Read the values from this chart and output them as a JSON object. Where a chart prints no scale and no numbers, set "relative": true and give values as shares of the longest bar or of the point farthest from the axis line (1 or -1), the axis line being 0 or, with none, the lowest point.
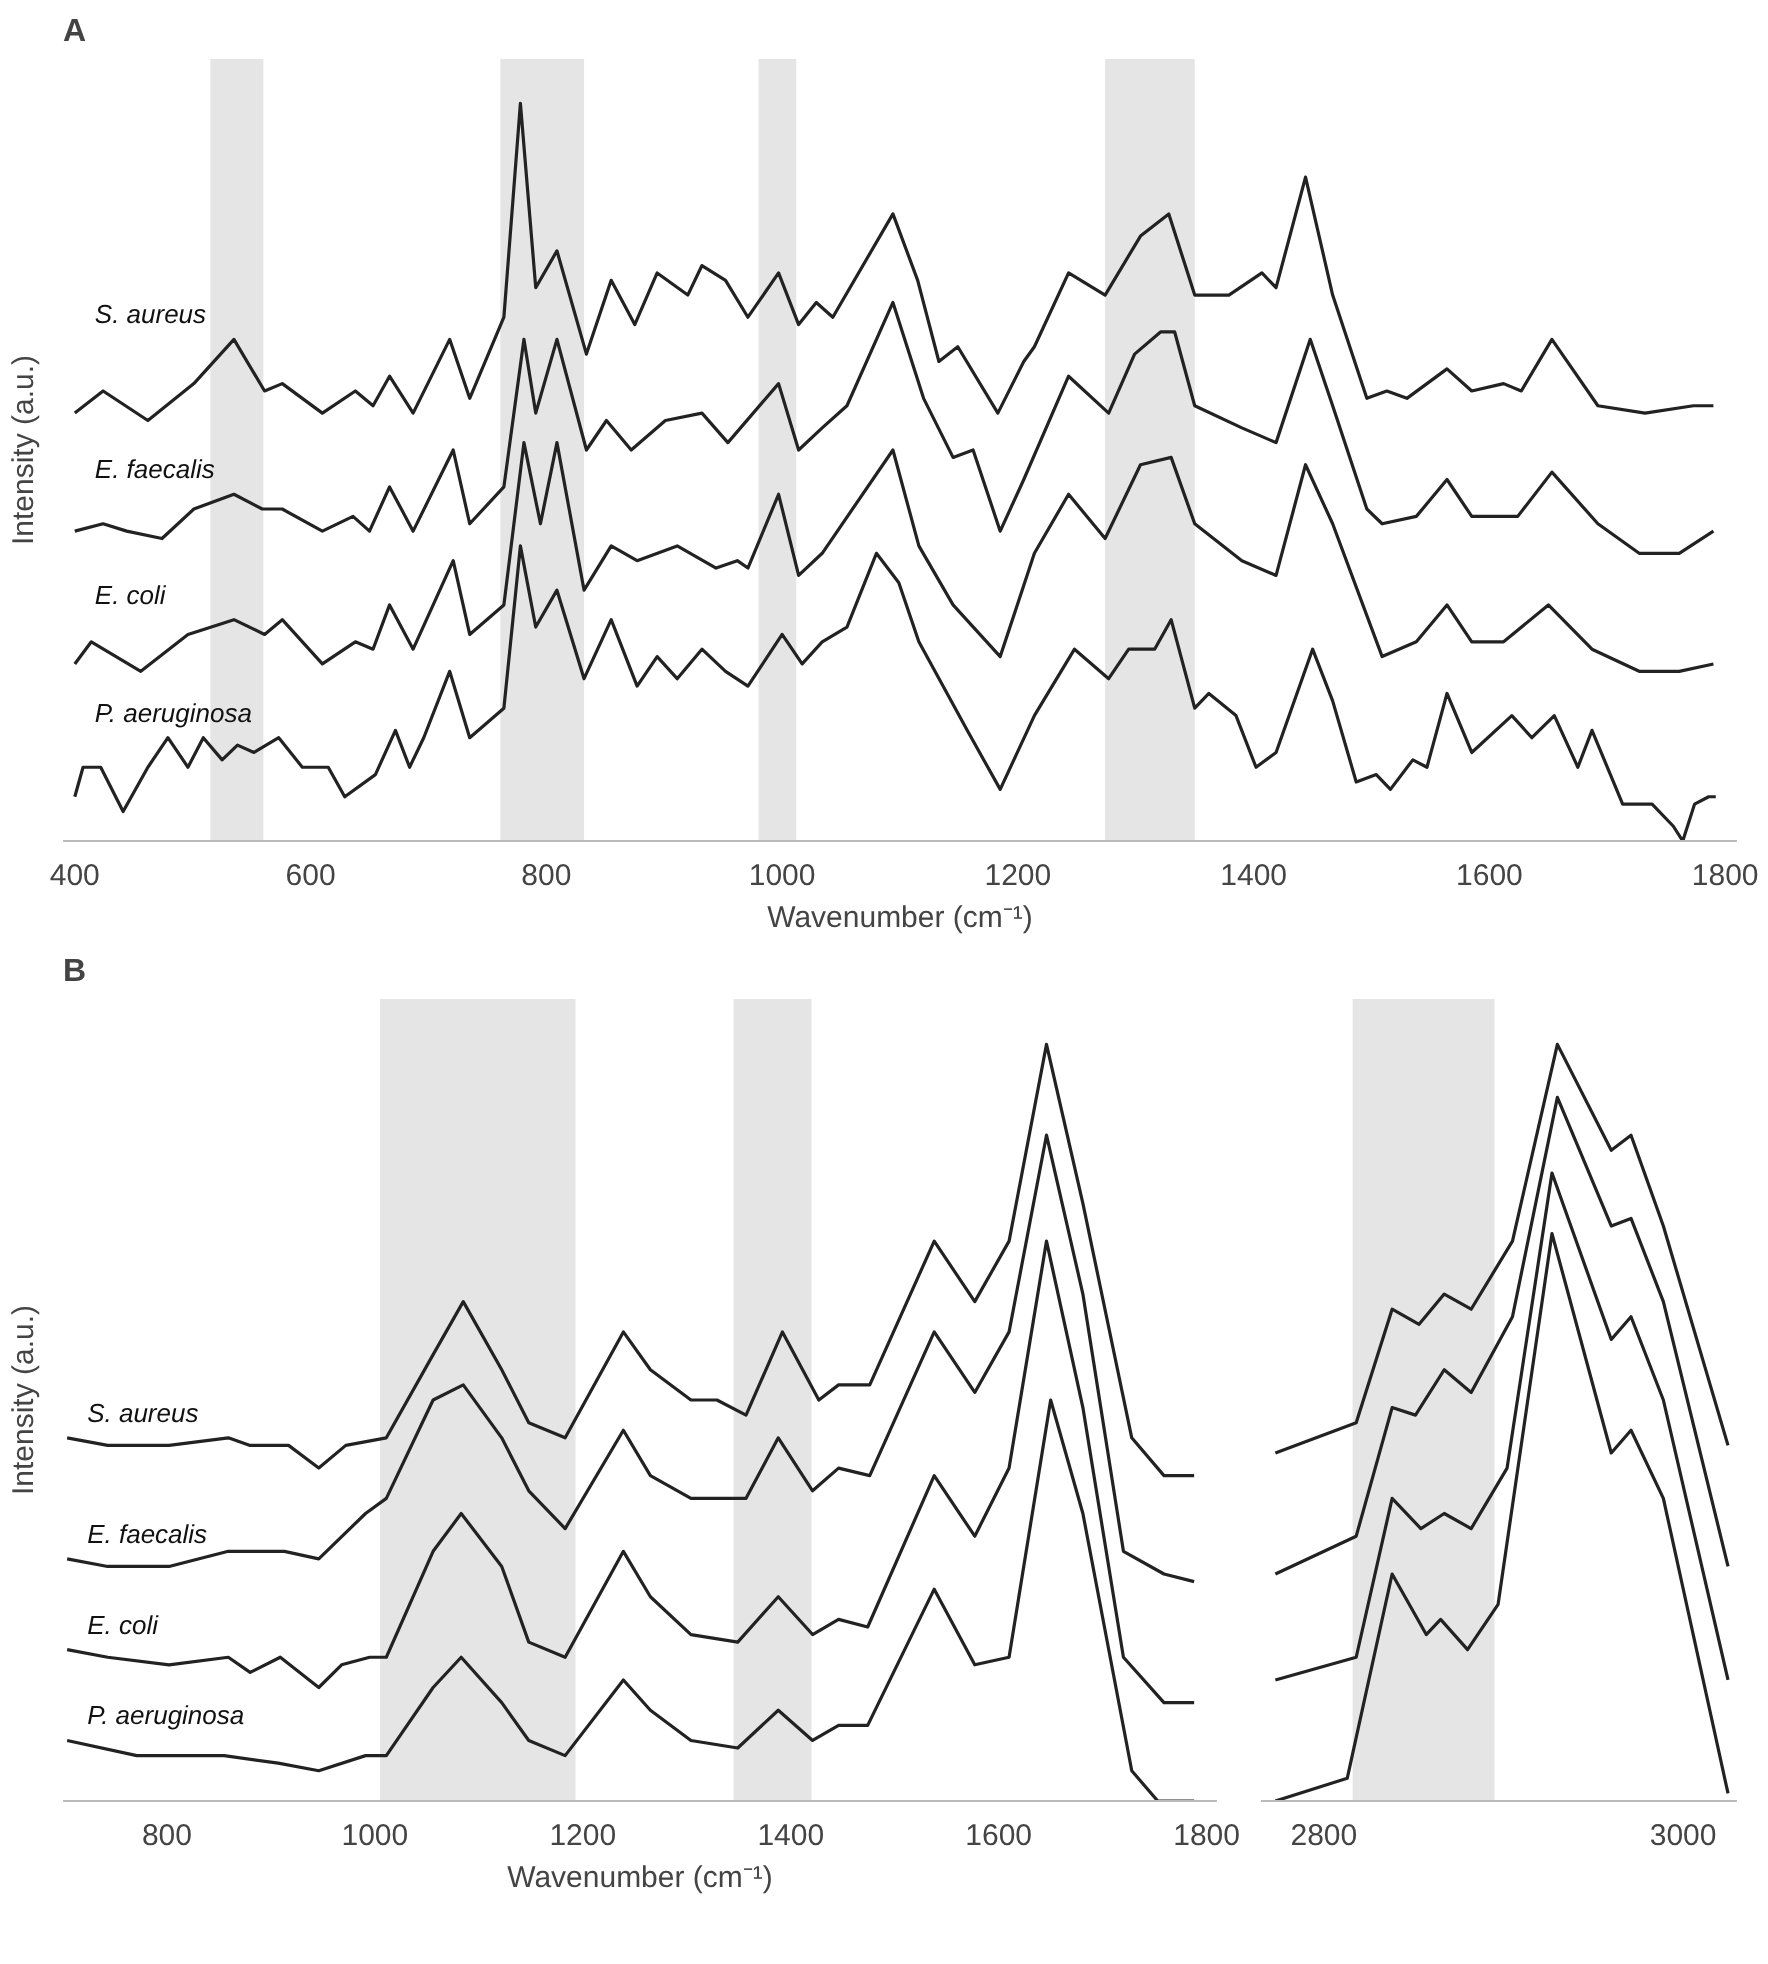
{
  "chart_data": [
    {
      "type": "line",
      "relative": true,
      "annotations": [
        "A"
      ],
      "xlabel": "Wavenumber (cm⁻¹)",
      "ylabel": "Intensity (a.u.)",
      "xlim": [
        390,
        1810
      ],
      "xticks": [
        400,
        600,
        800,
        1000,
        1200,
        1400,
        1600,
        1800
      ],
      "tick_labels": "x",
      "bands": [
        {
          "axis": "x",
          "from": 515,
          "to": 560,
          "color": "#d4d4d4"
        },
        {
          "axis": "x",
          "from": 761,
          "to": 832,
          "color": "#d4d4d4"
        },
        {
          "axis": "x",
          "from": 980,
          "to": 1012,
          "color": "#d4d4d4"
        },
        {
          "axis": "x",
          "from": 1274,
          "to": 1350,
          "color": "#d4d4d4"
        }
      ],
      "series": [
        {
          "name": "S. aureus",
          "color": "#222222",
          "x": [
            400,
            424,
            462,
            501,
            535,
            561,
            576,
            610,
            638,
            653,
            667,
            687,
            718,
            735,
            764,
            778,
            791,
            809,
            834,
            855,
            875,
            894,
            920,
            932,
            952,
            971,
            997,
            1014,
            1029,
            1043,
            1094,
            1115,
            1133,
            1149,
            1183,
            1205,
            1214,
            1243,
            1274,
            1304,
            1328,
            1350,
            1379,
            1407,
            1419,
            1444,
            1467,
            1496,
            1513,
            1530,
            1564,
            1585,
            1612,
            1627,
            1653,
            1692,
            1732,
            1773,
            1790
          ],
          "values": [
            0.58,
            0.61,
            0.57,
            0.62,
            0.68,
            0.61,
            0.62,
            0.58,
            0.61,
            0.59,
            0.63,
            0.58,
            0.68,
            0.6,
            0.71,
            1.0,
            0.75,
            0.8,
            0.66,
            0.76,
            0.7,
            0.77,
            0.74,
            0.78,
            0.76,
            0.71,
            0.77,
            0.7,
            0.73,
            0.71,
            0.85,
            0.76,
            0.65,
            0.67,
            0.58,
            0.65,
            0.67,
            0.77,
            0.74,
            0.82,
            0.85,
            0.74,
            0.74,
            0.77,
            0.75,
            0.9,
            0.74,
            0.6,
            0.61,
            0.6,
            0.64,
            0.61,
            0.62,
            0.61,
            0.68,
            0.59,
            0.58,
            0.59,
            0.59
          ]
        },
        {
          "name": "E. faecalis",
          "color": "#222222",
          "x": [
            400,
            424,
            444,
            474,
            501,
            535,
            559,
            576,
            610,
            636,
            650,
            667,
            687,
            721,
            735,
            764,
            781,
            791,
            809,
            834,
            851,
            872,
            901,
            932,
            954,
            997,
            1014,
            1034,
            1055,
            1094,
            1120,
            1145,
            1162,
            1185,
            1205,
            1243,
            1277,
            1299,
            1321,
            1333,
            1350,
            1390,
            1419,
            1448,
            1467,
            1496,
            1509,
            1538,
            1564,
            1585,
            1624,
            1653,
            1692,
            1727,
            1761,
            1790
          ],
          "values": [
            0.42,
            0.43,
            0.42,
            0.41,
            0.45,
            0.47,
            0.45,
            0.45,
            0.42,
            0.44,
            0.42,
            0.48,
            0.42,
            0.53,
            0.43,
            0.48,
            0.68,
            0.58,
            0.68,
            0.53,
            0.57,
            0.53,
            0.57,
            0.58,
            0.54,
            0.62,
            0.53,
            0.56,
            0.59,
            0.73,
            0.6,
            0.52,
            0.53,
            0.42,
            0.49,
            0.63,
            0.58,
            0.66,
            0.69,
            0.69,
            0.59,
            0.56,
            0.54,
            0.68,
            0.59,
            0.45,
            0.43,
            0.44,
            0.49,
            0.44,
            0.44,
            0.5,
            0.43,
            0.39,
            0.39,
            0.42
          ]
        },
        {
          "name": "E. coli",
          "color": "#222222",
          "x": [
            400,
            414,
            456,
            496,
            535,
            561,
            576,
            610,
            638,
            653,
            667,
            687,
            721,
            735,
            764,
            781,
            795,
            809,
            832,
            855,
            877,
            911,
            944,
            962,
            971,
            997,
            1014,
            1034,
            1094,
            1116,
            1145,
            1185,
            1214,
            1243,
            1274,
            1304,
            1330,
            1350,
            1390,
            1419,
            1444,
            1467,
            1509,
            1538,
            1564,
            1585,
            1612,
            1650,
            1687,
            1727,
            1761,
            1790
          ],
          "values": [
            0.24,
            0.27,
            0.23,
            0.28,
            0.3,
            0.28,
            0.3,
            0.24,
            0.27,
            0.26,
            0.32,
            0.26,
            0.38,
            0.28,
            0.32,
            0.54,
            0.43,
            0.54,
            0.34,
            0.4,
            0.38,
            0.4,
            0.37,
            0.38,
            0.37,
            0.47,
            0.36,
            0.39,
            0.53,
            0.4,
            0.32,
            0.25,
            0.39,
            0.47,
            0.41,
            0.51,
            0.52,
            0.43,
            0.38,
            0.36,
            0.51,
            0.43,
            0.25,
            0.27,
            0.32,
            0.27,
            0.27,
            0.32,
            0.26,
            0.23,
            0.23,
            0.24
          ]
        },
        {
          "name": "P. aeruginosa",
          "color": "#222222",
          "x": [
            400,
            407,
            422,
            441,
            462,
            479,
            496,
            509,
            525,
            538,
            552,
            573,
            593,
            615,
            629,
            655,
            672,
            684,
            696,
            718,
            735,
            764,
            778,
            791,
            809,
            832,
            855,
            877,
            894,
            911,
            932,
            952,
            971,
            1000,
            1017,
            1034,
            1055,
            1080,
            1099,
            1116,
            1157,
            1185,
            1214,
            1248,
            1277,
            1294,
            1316,
            1330,
            1350,
            1362,
            1385,
            1402,
            1419,
            1450,
            1467,
            1487,
            1504,
            1516,
            1535,
            1547,
            1564,
            1585,
            1619,
            1636,
            1655,
            1675,
            1687,
            1713,
            1738,
            1756,
            1764,
            1774,
            1786,
            1792
          ],
          "values": [
            0.06,
            0.1,
            0.1,
            0.04,
            0.1,
            0.14,
            0.1,
            0.14,
            0.11,
            0.13,
            0.12,
            0.14,
            0.1,
            0.1,
            0.06,
            0.09,
            0.15,
            0.1,
            0.14,
            0.23,
            0.14,
            0.18,
            0.4,
            0.29,
            0.34,
            0.22,
            0.3,
            0.21,
            0.25,
            0.22,
            0.26,
            0.23,
            0.21,
            0.28,
            0.24,
            0.27,
            0.29,
            0.39,
            0.35,
            0.27,
            0.15,
            0.07,
            0.17,
            0.26,
            0.22,
            0.26,
            0.26,
            0.3,
            0.18,
            0.2,
            0.17,
            0.1,
            0.12,
            0.26,
            0.19,
            0.08,
            0.09,
            0.07,
            0.11,
            0.1,
            0.2,
            0.12,
            0.17,
            0.14,
            0.17,
            0.1,
            0.15,
            0.05,
            0.05,
            0.02,
            0.0,
            0.05,
            0.06,
            0.06
          ]
        }
      ]
    },
    {
      "type": "line",
      "relative": true,
      "annotations": [
        "B"
      ],
      "xlabel": "Wavenumber (cm⁻¹)",
      "ylabel": "Intensity (a.u.)",
      "xlim": [
        700,
        1810
      ],
      "xticks": [
        800,
        1000,
        1200,
        1400,
        1600,
        1800
      ],
      "tick_labels": "x",
      "bands": [
        {
          "axis": "x",
          "from": 1005,
          "to": 1193,
          "color": "#d4d4d4"
        },
        {
          "axis": "x",
          "from": 1345,
          "to": 1420,
          "color": "#d4d4d4"
        }
      ],
      "series": [
        {
          "name": "S. aureus",
          "color": "#222222",
          "x": [
            704,
            743,
            802,
            859,
            880,
            917,
            946,
            972,
            1011,
            1056,
            1085,
            1122,
            1148,
            1183,
            1239,
            1265,
            1304,
            1329,
            1357,
            1392,
            1427,
            1446,
            1476,
            1538,
            1577,
            1610,
            1646,
            1681,
            1728,
            1759,
            1788
          ],
          "values": [
            0.48,
            0.47,
            0.47,
            0.48,
            0.47,
            0.47,
            0.44,
            0.47,
            0.48,
            0.59,
            0.66,
            0.57,
            0.5,
            0.48,
            0.62,
            0.57,
            0.53,
            0.53,
            0.51,
            0.62,
            0.53,
            0.55,
            0.55,
            0.74,
            0.66,
            0.74,
            1.0,
            0.79,
            0.48,
            0.43,
            0.43
          ]
        },
        {
          "name": "E. faecalis",
          "color": "#222222",
          "x": [
            704,
            743,
            802,
            859,
            913,
            946,
            991,
            1011,
            1056,
            1085,
            1122,
            1148,
            1183,
            1239,
            1265,
            1304,
            1329,
            1357,
            1388,
            1421,
            1446,
            1476,
            1538,
            1577,
            1610,
            1646,
            1681,
            1720,
            1759,
            1788
          ],
          "values": [
            0.32,
            0.31,
            0.31,
            0.33,
            0.33,
            0.32,
            0.38,
            0.4,
            0.53,
            0.55,
            0.48,
            0.41,
            0.36,
            0.49,
            0.43,
            0.4,
            0.4,
            0.4,
            0.48,
            0.41,
            0.44,
            0.43,
            0.62,
            0.54,
            0.62,
            0.88,
            0.67,
            0.33,
            0.3,
            0.29
          ]
        },
        {
          "name": "E. coli",
          "color": "#222222",
          "x": [
            704,
            743,
            802,
            859,
            880,
            909,
            946,
            968,
            995,
            1011,
            1056,
            1083,
            1122,
            1148,
            1183,
            1239,
            1265,
            1304,
            1349,
            1388,
            1421,
            1446,
            1474,
            1538,
            1577,
            1610,
            1646,
            1681,
            1720,
            1759,
            1788
          ],
          "values": [
            0.2,
            0.19,
            0.18,
            0.19,
            0.17,
            0.19,
            0.15,
            0.18,
            0.19,
            0.19,
            0.33,
            0.38,
            0.31,
            0.21,
            0.19,
            0.33,
            0.27,
            0.22,
            0.21,
            0.27,
            0.22,
            0.24,
            0.23,
            0.43,
            0.35,
            0.44,
            0.74,
            0.52,
            0.19,
            0.13,
            0.13
          ]
        },
        {
          "name": "P. aeruginosa",
          "color": "#222222",
          "x": [
            704,
            771,
            855,
            907,
            946,
            991,
            1011,
            1056,
            1083,
            1122,
            1148,
            1183,
            1239,
            1265,
            1304,
            1349,
            1388,
            1421,
            1446,
            1474,
            1538,
            1577,
            1610,
            1650,
            1681,
            1728,
            1753,
            1788
          ],
          "values": [
            0.08,
            0.06,
            0.06,
            0.05,
            0.04,
            0.06,
            0.06,
            0.15,
            0.19,
            0.13,
            0.08,
            0.06,
            0.16,
            0.12,
            0.08,
            0.07,
            0.12,
            0.08,
            0.1,
            0.1,
            0.28,
            0.18,
            0.19,
            0.53,
            0.38,
            0.04,
            0.0,
            0.0
          ]
        }
      ]
    },
    {
      "type": "line",
      "relative": true,
      "xlim": [
        2765,
        3030
      ],
      "xticks": [
        2800,
        3000
      ],
      "tick_labels": "x",
      "bands": [
        {
          "axis": "x",
          "from": 2816,
          "to": 2895,
          "color": "#d4d4d4"
        }
      ],
      "series": [
        {
          "color": "#222222",
          "x": [
            2773,
            2818,
            2838,
            2853,
            2867,
            2882,
            2905,
            2930,
            2960,
            2971,
            2989,
            3025
          ],
          "values": [
            0.46,
            0.5,
            0.65,
            0.63,
            0.67,
            0.65,
            0.74,
            1.0,
            0.86,
            0.88,
            0.76,
            0.47
          ]
        },
        {
          "color": "#222222",
          "x": [
            2773,
            2818,
            2838,
            2851,
            2867,
            2882,
            2905,
            2930,
            2960,
            2971,
            2989,
            3025
          ],
          "values": [
            0.3,
            0.35,
            0.52,
            0.51,
            0.57,
            0.54,
            0.64,
            0.93,
            0.76,
            0.77,
            0.66,
            0.31
          ]
        },
        {
          "color": "#222222",
          "x": [
            2773,
            2818,
            2838,
            2854,
            2867,
            2882,
            2902,
            2927,
            2960,
            2971,
            2989,
            3025
          ],
          "values": [
            0.16,
            0.19,
            0.4,
            0.36,
            0.38,
            0.36,
            0.44,
            0.83,
            0.61,
            0.64,
            0.53,
            0.16
          ]
        },
        {
          "color": "#222222",
          "x": [
            2773,
            2813,
            2838,
            2857,
            2865,
            2880,
            2897,
            2927,
            2960,
            2971,
            2989,
            3025
          ],
          "values": [
            0.0,
            0.03,
            0.3,
            0.22,
            0.24,
            0.2,
            0.26,
            0.75,
            0.46,
            0.49,
            0.4,
            0.01
          ]
        }
      ]
    }
  ]
}
